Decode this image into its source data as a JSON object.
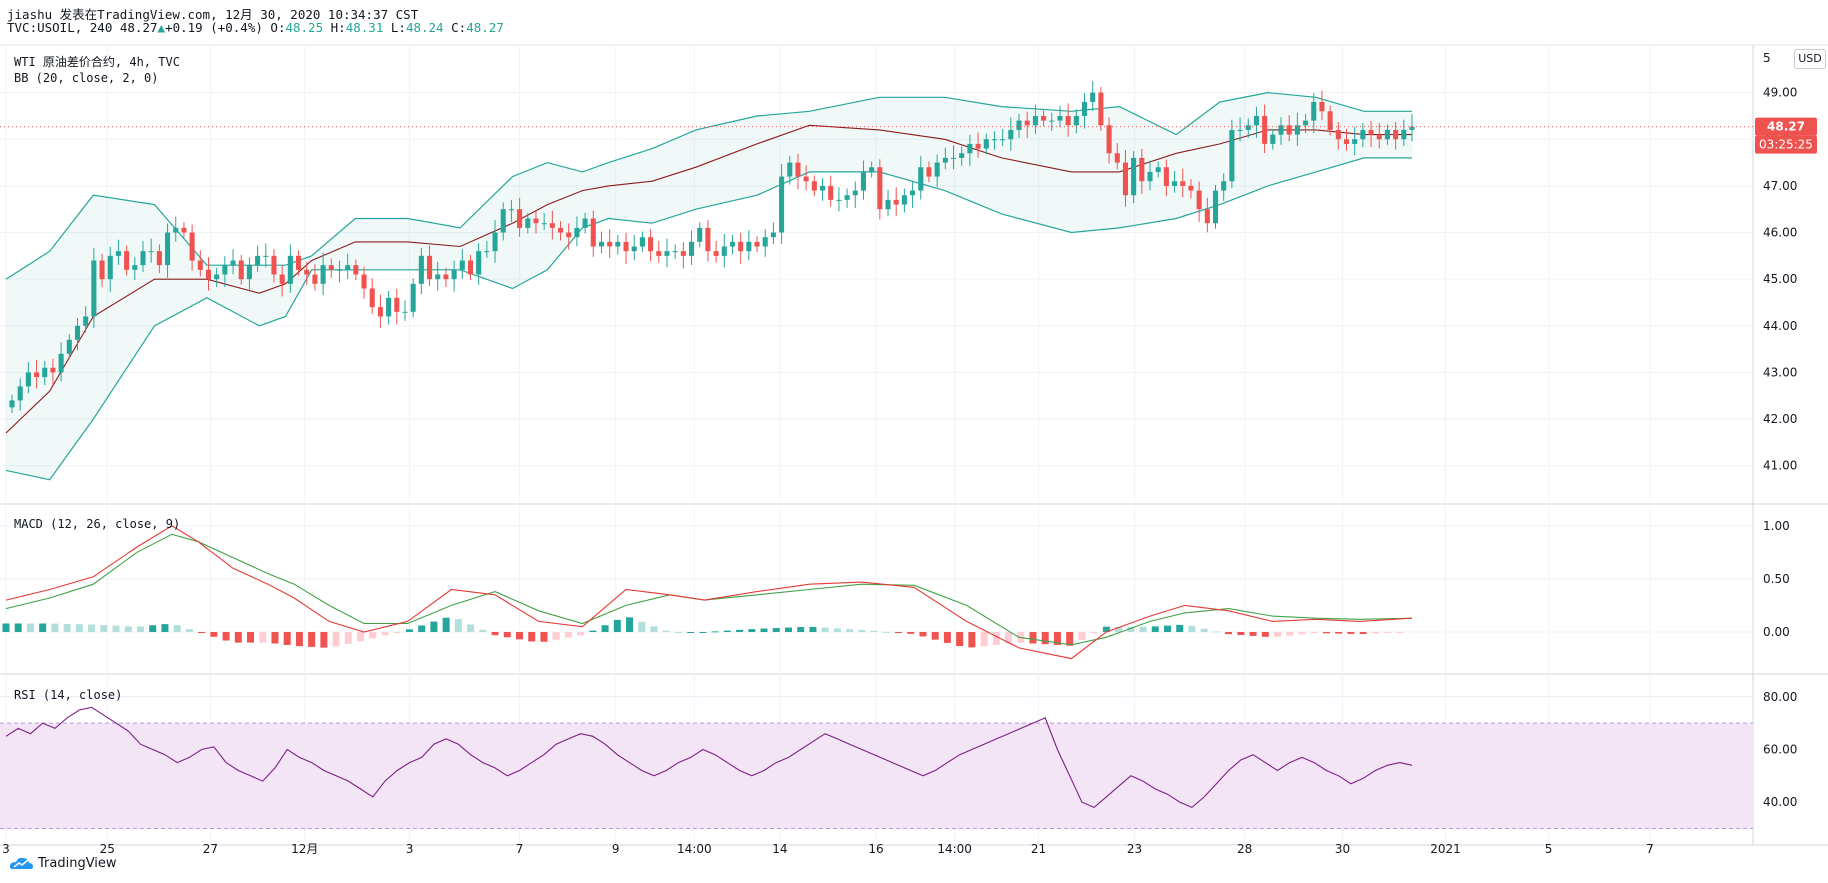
{
  "header": {
    "line1": "jiashu 发表在TradingView.com, 12月 30, 2020 10:34:37 CST",
    "symbol_prefix": "TVC:USOIL, 240 48.27",
    "change": "+0.19 (+0.4%)",
    "o_label": "O:",
    "o": "48.25",
    "h_label": "H:",
    "h": "48.31",
    "l_label": "L:",
    "l": "48.24",
    "c_label": "C:",
    "c": "48.27"
  },
  "panes": {
    "main_title": "WTI 原油差价合约, 4h, TVC",
    "bb_title": "BB (20, close, 2, 0)",
    "macd_title": "MACD (12, 26, close, 9)",
    "rsi_title": "RSI (14, close)"
  },
  "currency": "USD",
  "price_badge": {
    "value": "48.27",
    "countdown": "03:25:25"
  },
  "footer": {
    "brand": "TradingView"
  },
  "colors": {
    "up": "#26a69a",
    "down": "#ef5350",
    "bb_band": "#26a69a",
    "bb_basis": "#8b1a1a",
    "macd": "#e53935",
    "signal": "#43a047",
    "rsi": "#7e1f86",
    "rsi_fill": "#f3e5f5"
  },
  "chart_data": [
    {
      "type": "candlestick",
      "name": "TVC:USOIL 240",
      "price_axis": {
        "ticks": [
          "49.00",
          "48.00",
          "47.00",
          "46.00",
          "45.00",
          "44.00",
          "43.00",
          "42.00",
          "41.00"
        ],
        "top_label": "5"
      },
      "last_price": 48.27,
      "closes": [
        42.4,
        42.7,
        43.0,
        42.9,
        43.1,
        43.0,
        43.4,
        43.7,
        44.0,
        44.2,
        45.4,
        45.0,
        45.5,
        45.6,
        45.2,
        45.3,
        45.6,
        45.6,
        45.3,
        46.0,
        46.1,
        46.0,
        45.4,
        45.2,
        45.0,
        45.1,
        45.3,
        45.4,
        45.0,
        45.3,
        45.5,
        45.5,
        45.1,
        44.9,
        45.5,
        45.2,
        45.1,
        44.9,
        45.3,
        45.2,
        45.2,
        45.3,
        45.1,
        44.8,
        44.4,
        44.2,
        44.6,
        44.3,
        44.3,
        44.9,
        45.5,
        45.0,
        45.1,
        45.0,
        45.2,
        45.4,
        45.1,
        45.6,
        45.6,
        46.0,
        46.5,
        46.5,
        46.1,
        46.3,
        46.2,
        46.2,
        46.1,
        46.0,
        45.9,
        46.1,
        46.3,
        45.7,
        45.8,
        45.7,
        45.8,
        45.6,
        45.7,
        45.9,
        45.6,
        45.5,
        45.6,
        45.6,
        45.5,
        45.8,
        46.1,
        45.6,
        45.5,
        45.7,
        45.8,
        45.6,
        45.8,
        45.7,
        45.9,
        46.0,
        47.2,
        47.5,
        47.2,
        47.1,
        46.9,
        47.0,
        46.7,
        46.7,
        46.8,
        46.9,
        47.3,
        47.4,
        46.5,
        46.7,
        46.6,
        46.8,
        46.9,
        47.4,
        47.2,
        47.5,
        47.6,
        47.6,
        47.7,
        47.9,
        47.8,
        48.0,
        48.0,
        48.0,
        48.2,
        48.4,
        48.3,
        48.5,
        48.4,
        48.4,
        48.5,
        48.3,
        48.5,
        48.8,
        49.0,
        48.3,
        47.7,
        47.5,
        46.8,
        47.6,
        47.1,
        47.3,
        47.4,
        47.0,
        47.1,
        47.0,
        46.9,
        46.5,
        46.2,
        46.9,
        47.1,
        48.2,
        48.2,
        48.3,
        48.5,
        47.9,
        48.1,
        48.3,
        48.1,
        48.3,
        48.4,
        48.8,
        48.6,
        48.2,
        48.0,
        47.9,
        48.0,
        48.2,
        48.1,
        48.0,
        48.2,
        48.0,
        48.2,
        48.27
      ],
      "bb_upper": {
        "x_points": [
          0,
          10,
          20,
          34,
          46,
          58,
          64,
          70,
          80,
          92,
          104,
          116,
          124,
          132,
          138,
          148,
          158,
          172,
          184,
          200,
          215,
          228,
          244,
          255,
          268,
          278,
          289,
          300,
          311,
          322
        ],
        "y": [
          45.0,
          45.6,
          46.8,
          46.6,
          45.3,
          45.3,
          45.3,
          45.5,
          46.3,
          46.3,
          46.1,
          47.2,
          47.5,
          47.3,
          47.5,
          47.8,
          48.2,
          48.5,
          48.6,
          48.9,
          48.9,
          48.7,
          48.6,
          48.7,
          48.1,
          48.8,
          49.0,
          48.9,
          48.6,
          48.6
        ]
      },
      "bb_basis": {
        "x_points": [
          0,
          10,
          20,
          34,
          46,
          58,
          64,
          70,
          80,
          92,
          104,
          116,
          124,
          132,
          138,
          148,
          158,
          172,
          184,
          200,
          215,
          228,
          244,
          255,
          268,
          278,
          289,
          300,
          311,
          322
        ],
        "y": [
          41.7,
          42.6,
          44.2,
          45.0,
          45.0,
          44.7,
          44.9,
          45.4,
          45.8,
          45.8,
          45.7,
          46.2,
          46.6,
          46.9,
          47.0,
          47.1,
          47.4,
          47.9,
          48.3,
          48.2,
          48.0,
          47.6,
          47.3,
          47.3,
          47.7,
          47.9,
          48.2,
          48.2,
          48.1,
          48.1
        ]
      },
      "bb_lower": {
        "x_points": [
          0,
          10,
          20,
          34,
          46,
          58,
          64,
          70,
          80,
          92,
          104,
          116,
          124,
          132,
          138,
          148,
          158,
          172,
          184,
          200,
          215,
          228,
          244,
          255,
          268,
          278,
          289,
          300,
          311,
          322
        ],
        "y": [
          40.9,
          40.7,
          42.0,
          44.0,
          44.6,
          44.0,
          44.2,
          45.2,
          45.2,
          45.2,
          45.2,
          44.8,
          45.2,
          46.1,
          46.3,
          46.2,
          46.5,
          46.8,
          47.3,
          47.3,
          46.9,
          46.4,
          46.0,
          46.1,
          46.3,
          46.6,
          47.0,
          47.3,
          47.6,
          47.6
        ]
      }
    },
    {
      "type": "line",
      "name": "MACD",
      "y_ticks": [
        "1.00",
        "0.50",
        "0.00"
      ],
      "x_points": [
        0,
        10,
        20,
        30,
        38,
        44,
        52,
        60,
        66,
        74,
        82,
        92,
        102,
        112,
        122,
        132,
        142,
        152,
        160,
        172,
        184,
        196,
        208,
        220,
        232,
        244,
        252,
        262,
        270,
        280,
        290,
        300,
        310,
        322
      ],
      "macd": [
        0.3,
        0.4,
        0.52,
        0.8,
        1.0,
        0.85,
        0.6,
        0.45,
        0.32,
        0.1,
        0.0,
        0.1,
        0.4,
        0.35,
        0.1,
        0.05,
        0.4,
        0.35,
        0.3,
        0.38,
        0.45,
        0.47,
        0.42,
        0.1,
        -0.15,
        -0.25,
        0.0,
        0.15,
        0.25,
        0.2,
        0.1,
        0.12,
        0.1,
        0.13
      ],
      "signal": [
        0.22,
        0.32,
        0.45,
        0.75,
        0.92,
        0.85,
        0.7,
        0.55,
        0.45,
        0.25,
        0.08,
        0.08,
        0.25,
        0.38,
        0.2,
        0.08,
        0.25,
        0.35,
        0.3,
        0.35,
        0.4,
        0.45,
        0.44,
        0.25,
        -0.05,
        -0.12,
        -0.05,
        0.1,
        0.18,
        0.22,
        0.15,
        0.13,
        0.12,
        0.13
      ]
    },
    {
      "type": "line",
      "name": "RSI",
      "y_ticks": [
        "80.00",
        "60.00",
        "40.00"
      ],
      "bands": [
        70,
        30
      ],
      "values": [
        65,
        68,
        66,
        70,
        68,
        72,
        75,
        76,
        73,
        70,
        67,
        62,
        60,
        58,
        55,
        57,
        60,
        61,
        55,
        52,
        50,
        48,
        53,
        60,
        57,
        55,
        52,
        50,
        48,
        45,
        42,
        48,
        52,
        55,
        57,
        62,
        64,
        62,
        58,
        55,
        53,
        50,
        52,
        55,
        58,
        62,
        64,
        66,
        65,
        62,
        58,
        55,
        52,
        50,
        52,
        55,
        57,
        60,
        58,
        55,
        52,
        50,
        52,
        55,
        57,
        60,
        63,
        66,
        64,
        62,
        60,
        58,
        56,
        54,
        52,
        50,
        52,
        55,
        58,
        60,
        62,
        64,
        66,
        68,
        70,
        72,
        60,
        50,
        40,
        38,
        42,
        46,
        50,
        48,
        45,
        43,
        40,
        38,
        42,
        47,
        52,
        56,
        58,
        55,
        52,
        55,
        57,
        55,
        52,
        50,
        47,
        49,
        52,
        54,
        55,
        54
      ]
    }
  ],
  "x_axis": {
    "labels": [
      {
        "text": "3",
        "t": 0
      },
      {
        "text": "25",
        "t": 0.058
      },
      {
        "text": "27",
        "t": 0.117
      },
      {
        "text": "12月",
        "t": 0.171
      },
      {
        "text": "3",
        "t": 0.231
      },
      {
        "text": "7",
        "t": 0.294
      },
      {
        "text": "9",
        "t": 0.349
      },
      {
        "text": "14:00",
        "t": 0.394
      },
      {
        "text": "14",
        "t": 0.443
      },
      {
        "text": "16",
        "t": 0.498
      },
      {
        "text": "14:00",
        "t": 0.543
      },
      {
        "text": "21",
        "t": 0.591
      },
      {
        "text": "23",
        "t": 0.646
      },
      {
        "text": "28",
        "t": 0.709
      },
      {
        "text": "30",
        "t": 0.765
      },
      {
        "text": "2021",
        "t": 0.824
      },
      {
        "text": "5",
        "t": 0.883
      },
      {
        "text": "7",
        "t": 0.941
      }
    ]
  }
}
